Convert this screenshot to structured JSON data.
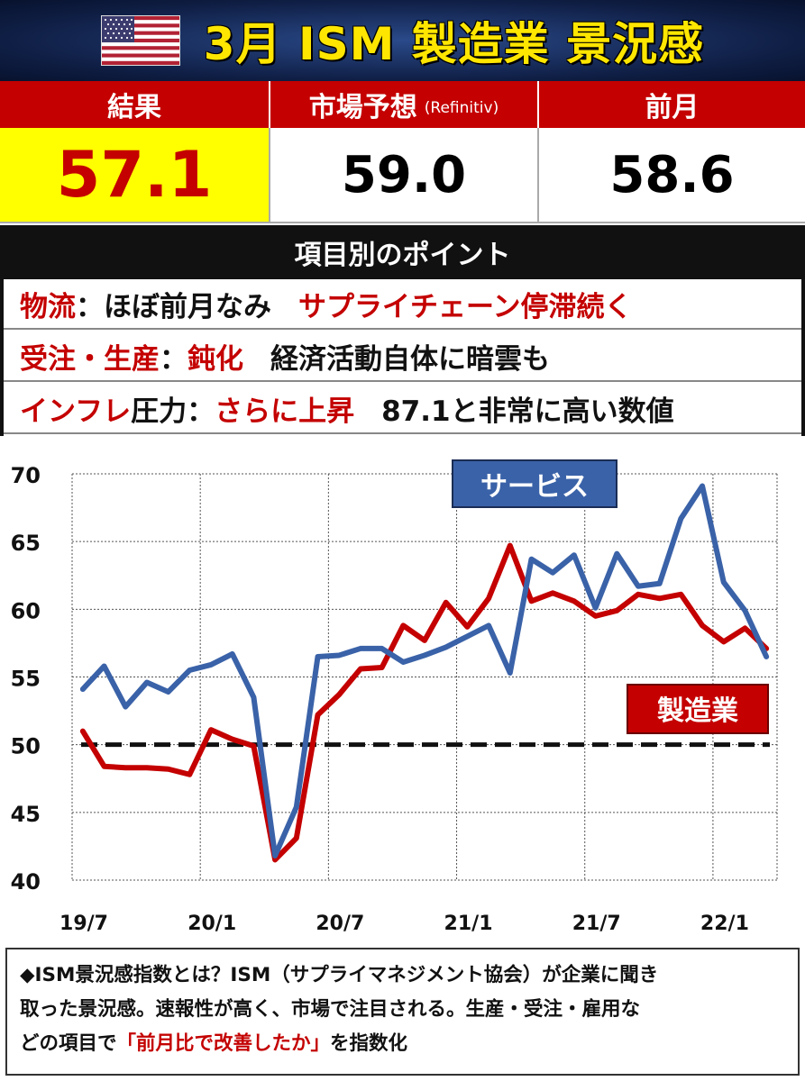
{
  "header": {
    "title": "3月 ISM 製造業 景況感"
  },
  "summary": {
    "result_label": "結果",
    "result_value": "57.1",
    "forecast_label": "市場予想",
    "forecast_source": "(Refinitiv)",
    "forecast_value": "59.0",
    "previous_label": "前月",
    "previous_value": "58.6"
  },
  "points": {
    "heading": "項目別のポイント",
    "row1": {
      "key": "物流",
      "sep": "：",
      "status": "ほぼ前月なみ",
      "note": "サプライチェーン停滞続く"
    },
    "row2": {
      "key": "受注・生産",
      "sep": "：",
      "status": "鈍化",
      "note": "経済活動自体に暗雲も"
    },
    "row3": {
      "key": "インフレ",
      "key_rest": "圧力",
      "sep": "：",
      "status": "さらに上昇",
      "note": "87.1と非常に高い数値"
    }
  },
  "chart_data": {
    "type": "line",
    "ylim": [
      40,
      70
    ],
    "yticks": [
      40,
      45,
      50,
      55,
      60,
      65,
      70
    ],
    "xlim": [
      0,
      33
    ],
    "xticks": [
      {
        "label": "19/7",
        "index": 0
      },
      {
        "label": "20/1",
        "index": 6
      },
      {
        "label": "20/7",
        "index": 12
      },
      {
        "label": "21/1",
        "index": 18
      },
      {
        "label": "21/7",
        "index": 24
      },
      {
        "label": "22/1",
        "index": 30
      }
    ],
    "reference_line": 50,
    "series": [
      {
        "name": "製造業",
        "color": "#c40000",
        "values": [
          51.0,
          48.4,
          48.3,
          48.3,
          48.2,
          47.8,
          51.1,
          50.4,
          49.9,
          41.5,
          43.1,
          52.2,
          53.7,
          55.6,
          55.7,
          58.8,
          57.7,
          60.5,
          58.7,
          60.8,
          64.7,
          60.6,
          61.2,
          60.6,
          59.5,
          59.9,
          61.1,
          60.8,
          61.1,
          58.8,
          57.6,
          58.6,
          57.1
        ]
      },
      {
        "name": "サービス",
        "color": "#3a62a8",
        "values": [
          54.1,
          55.8,
          52.8,
          54.6,
          53.9,
          55.5,
          55.9,
          56.7,
          53.5,
          41.8,
          45.4,
          56.5,
          56.6,
          57.1,
          57.1,
          56.1,
          56.6,
          57.2,
          58.0,
          58.8,
          55.3,
          63.7,
          62.7,
          64.0,
          60.1,
          64.1,
          61.7,
          61.9,
          66.7,
          69.1,
          62.0,
          59.9,
          56.5
        ]
      }
    ],
    "grid": true
  },
  "footer": {
    "line1": "◆ISM景況感指数とは？ISM（サプライマネジメント協会）が企業に聞き",
    "line2": "取った景況感。速報性が高く、市場で注目される。生産・受注・雇用な",
    "line3_pre": "どの項目で",
    "line3_red": "「前月比で改善したか」",
    "line3_post": "を指数化"
  }
}
